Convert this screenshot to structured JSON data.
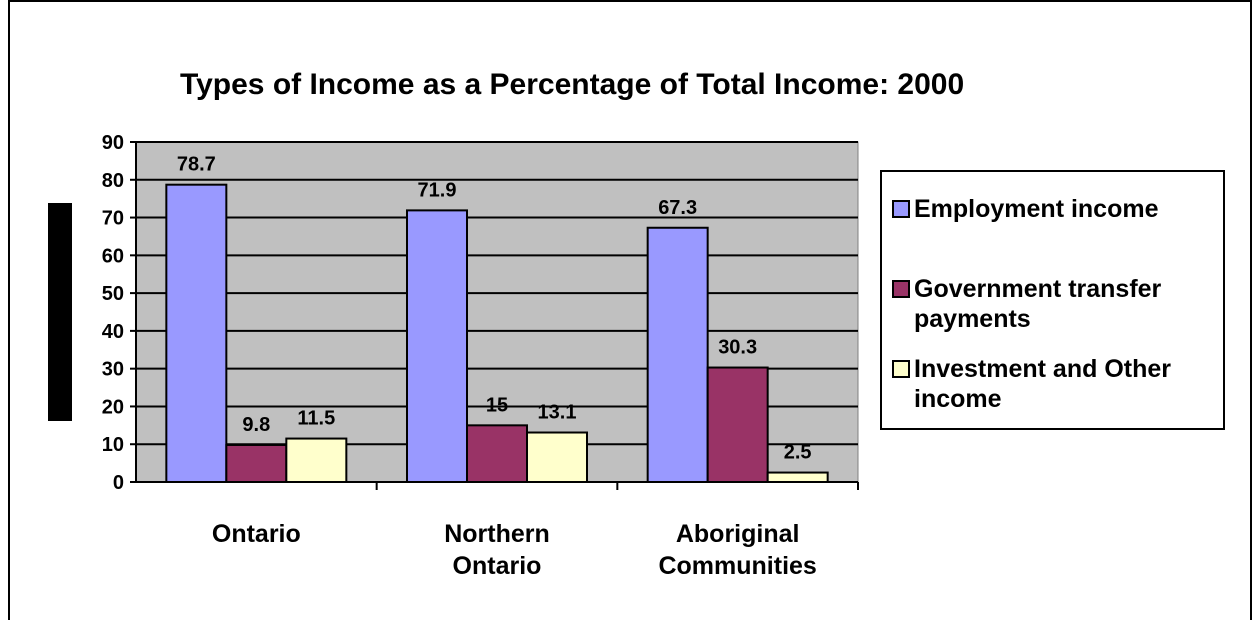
{
  "chart_data": {
    "type": "bar",
    "title": "Types of Income as a Percentage of Total Income: 2000",
    "categories": [
      "Ontario",
      "Northern Ontario",
      "Aboriginal Communities"
    ],
    "series": [
      {
        "name": "Employment income",
        "values": [
          78.7,
          71.9,
          67.3
        ],
        "labels": [
          "78.7",
          "71.9",
          "67.3"
        ],
        "color": "#9999FF"
      },
      {
        "name": "Government transfer payments",
        "values": [
          9.8,
          15,
          30.3
        ],
        "labels": [
          "9.8",
          "15",
          "30.3"
        ],
        "color": "#993366"
      },
      {
        "name": "Investment and Other income",
        "values": [
          11.5,
          13.1,
          2.5
        ],
        "labels": [
          "11.5",
          "13.1",
          "2.5"
        ],
        "color": "#FFFFCC"
      }
    ],
    "ylim": [
      0,
      90
    ],
    "yticks": [
      "0",
      "10",
      "20",
      "30",
      "40",
      "50",
      "60",
      "70",
      "80",
      "90"
    ],
    "grid": true,
    "legend": "right",
    "plot_background": "#C0C0C0"
  }
}
